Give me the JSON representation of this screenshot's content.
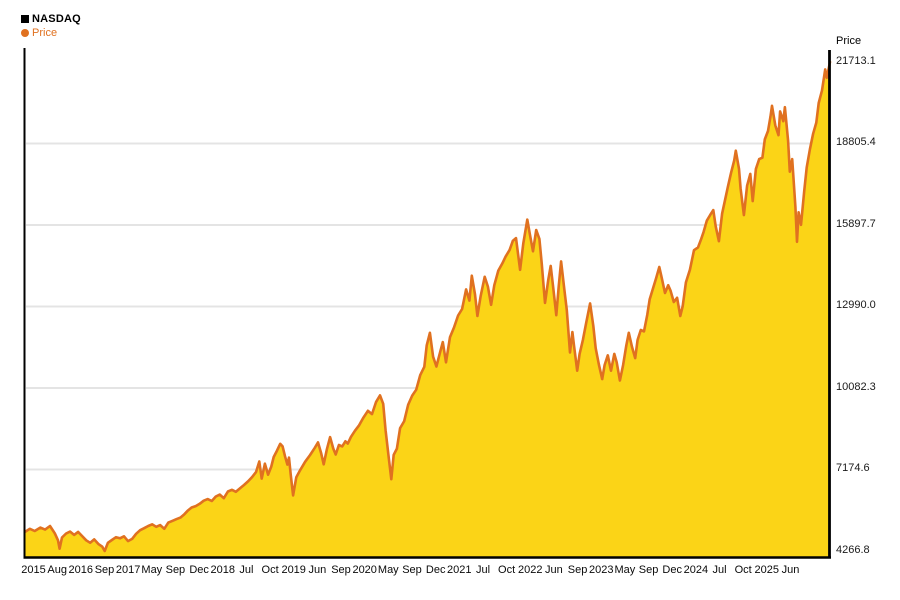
{
  "chart_data": {
    "type": "area",
    "title": "NASDAQ",
    "series_name": "Price",
    "y_axis_title": "Price",
    "legend_position": "top-left",
    "grid": "horizontal-only",
    "ylim": [
      4266.8,
      21713.1
    ],
    "y_ticks": [
      "21713.1",
      "18805.4",
      "15897.7",
      "12990.0",
      "10082.3",
      "7174.6",
      "4266.8"
    ],
    "x_labels": [
      "2015",
      "Aug",
      "2016",
      "Sep",
      "2017",
      "May",
      "Sep",
      "Dec",
      "2018",
      "Jul",
      "Oct",
      "2019",
      "Jun",
      "Sep",
      "2020",
      "May",
      "Sep",
      "Dec",
      "2021",
      "Jul",
      "Oct",
      "2022",
      "Jun",
      "Sep",
      "2023",
      "May",
      "Sep",
      "Dec",
      "2024",
      "Jul",
      "Oct",
      "2025",
      "Jun"
    ],
    "colors": {
      "fill": "#FBD417",
      "line": "#E07120",
      "grid": "#E4E4E4",
      "axis": "#000000",
      "legend_title": "#000000"
    },
    "points": [
      [
        0,
        4950
      ],
      [
        0.006,
        5060
      ],
      [
        0.012,
        4980
      ],
      [
        0.019,
        5100
      ],
      [
        0.025,
        5030
      ],
      [
        0.031,
        5160
      ],
      [
        0.037,
        4900
      ],
      [
        0.041,
        4650
      ],
      [
        0.043,
        4350
      ],
      [
        0.046,
        4750
      ],
      [
        0.051,
        4890
      ],
      [
        0.056,
        4960
      ],
      [
        0.061,
        4840
      ],
      [
        0.066,
        4950
      ],
      [
        0.071,
        4800
      ],
      [
        0.076,
        4650
      ],
      [
        0.081,
        4560
      ],
      [
        0.086,
        4680
      ],
      [
        0.091,
        4520
      ],
      [
        0.096,
        4420
      ],
      [
        0.099,
        4266.8
      ],
      [
        0.103,
        4560
      ],
      [
        0.108,
        4660
      ],
      [
        0.113,
        4760
      ],
      [
        0.118,
        4720
      ],
      [
        0.123,
        4790
      ],
      [
        0.128,
        4620
      ],
      [
        0.133,
        4700
      ],
      [
        0.138,
        4880
      ],
      [
        0.143,
        5010
      ],
      [
        0.148,
        5080
      ],
      [
        0.153,
        5160
      ],
      [
        0.158,
        5220
      ],
      [
        0.163,
        5130
      ],
      [
        0.168,
        5190
      ],
      [
        0.173,
        5060
      ],
      [
        0.178,
        5280
      ],
      [
        0.183,
        5340
      ],
      [
        0.188,
        5400
      ],
      [
        0.193,
        5460
      ],
      [
        0.198,
        5580
      ],
      [
        0.202,
        5700
      ],
      [
        0.207,
        5820
      ],
      [
        0.212,
        5870
      ],
      [
        0.217,
        5950
      ],
      [
        0.222,
        6060
      ],
      [
        0.227,
        6120
      ],
      [
        0.232,
        6050
      ],
      [
        0.237,
        6210
      ],
      [
        0.242,
        6280
      ],
      [
        0.247,
        6150
      ],
      [
        0.252,
        6390
      ],
      [
        0.257,
        6450
      ],
      [
        0.262,
        6380
      ],
      [
        0.267,
        6500
      ],
      [
        0.272,
        6620
      ],
      [
        0.277,
        6750
      ],
      [
        0.282,
        6900
      ],
      [
        0.287,
        7080
      ],
      [
        0.291,
        7460
      ],
      [
        0.294,
        6850
      ],
      [
        0.298,
        7380
      ],
      [
        0.302,
        6990
      ],
      [
        0.306,
        7280
      ],
      [
        0.309,
        7620
      ],
      [
        0.313,
        7850
      ],
      [
        0.317,
        8090
      ],
      [
        0.32,
        8000
      ],
      [
        0.323,
        7650
      ],
      [
        0.326,
        7350
      ],
      [
        0.328,
        7600
      ],
      [
        0.33,
        7000
      ],
      [
        0.333,
        6250
      ],
      [
        0.337,
        6900
      ],
      [
        0.342,
        7160
      ],
      [
        0.348,
        7450
      ],
      [
        0.354,
        7690
      ],
      [
        0.36,
        7950
      ],
      [
        0.364,
        8140
      ],
      [
        0.368,
        7750
      ],
      [
        0.371,
        7360
      ],
      [
        0.375,
        7900
      ],
      [
        0.379,
        8330
      ],
      [
        0.383,
        7920
      ],
      [
        0.386,
        7710
      ],
      [
        0.39,
        8050
      ],
      [
        0.394,
        8000
      ],
      [
        0.398,
        8180
      ],
      [
        0.401,
        8100
      ],
      [
        0.405,
        8340
      ],
      [
        0.41,
        8560
      ],
      [
        0.415,
        8750
      ],
      [
        0.42,
        9010
      ],
      [
        0.426,
        9270
      ],
      [
        0.431,
        9150
      ],
      [
        0.436,
        9580
      ],
      [
        0.441,
        9820
      ],
      [
        0.445,
        9520
      ],
      [
        0.448,
        8570
      ],
      [
        0.452,
        7550
      ],
      [
        0.455,
        6830
      ],
      [
        0.458,
        7700
      ],
      [
        0.462,
        7920
      ],
      [
        0.466,
        8650
      ],
      [
        0.471,
        8900
      ],
      [
        0.476,
        9490
      ],
      [
        0.481,
        9810
      ],
      [
        0.486,
        10020
      ],
      [
        0.491,
        10550
      ],
      [
        0.496,
        10840
      ],
      [
        0.499,
        11600
      ],
      [
        0.503,
        12050
      ],
      [
        0.507,
        11200
      ],
      [
        0.511,
        10850
      ],
      [
        0.516,
        11400
      ],
      [
        0.519,
        11720
      ],
      [
        0.523,
        11000
      ],
      [
        0.528,
        11900
      ],
      [
        0.533,
        12250
      ],
      [
        0.538,
        12670
      ],
      [
        0.543,
        12900
      ],
      [
        0.548,
        13600
      ],
      [
        0.552,
        13200
      ],
      [
        0.555,
        14090
      ],
      [
        0.559,
        13420
      ],
      [
        0.562,
        12650
      ],
      [
        0.566,
        13350
      ],
      [
        0.571,
        14050
      ],
      [
        0.575,
        13700
      ],
      [
        0.579,
        13050
      ],
      [
        0.583,
        13750
      ],
      [
        0.588,
        14270
      ],
      [
        0.593,
        14530
      ],
      [
        0.597,
        14770
      ],
      [
        0.602,
        15010
      ],
      [
        0.606,
        15330
      ],
      [
        0.61,
        15430
      ],
      [
        0.615,
        14300
      ],
      [
        0.619,
        15240
      ],
      [
        0.624,
        16090
      ],
      [
        0.627,
        15600
      ],
      [
        0.631,
        14960
      ],
      [
        0.635,
        15720
      ],
      [
        0.639,
        15400
      ],
      [
        0.642,
        14500
      ],
      [
        0.646,
        13120
      ],
      [
        0.65,
        13950
      ],
      [
        0.653,
        14440
      ],
      [
        0.656,
        13700
      ],
      [
        0.66,
        12680
      ],
      [
        0.663,
        13700
      ],
      [
        0.666,
        14600
      ],
      [
        0.67,
        13580
      ],
      [
        0.673,
        12860
      ],
      [
        0.677,
        11350
      ],
      [
        0.68,
        12080
      ],
      [
        0.682,
        11600
      ],
      [
        0.686,
        10700
      ],
      [
        0.689,
        11300
      ],
      [
        0.693,
        11800
      ],
      [
        0.697,
        12390
      ],
      [
        0.702,
        13100
      ],
      [
        0.706,
        12300
      ],
      [
        0.709,
        11500
      ],
      [
        0.713,
        10900
      ],
      [
        0.717,
        10400
      ],
      [
        0.72,
        10900
      ],
      [
        0.724,
        11250
      ],
      [
        0.728,
        10700
      ],
      [
        0.732,
        11300
      ],
      [
        0.735,
        11000
      ],
      [
        0.739,
        10350
      ],
      [
        0.743,
        10900
      ],
      [
        0.747,
        11600
      ],
      [
        0.75,
        12050
      ],
      [
        0.754,
        11550
      ],
      [
        0.758,
        11150
      ],
      [
        0.761,
        11800
      ],
      [
        0.765,
        12150
      ],
      [
        0.769,
        12100
      ],
      [
        0.773,
        12700
      ],
      [
        0.776,
        13250
      ],
      [
        0.78,
        13620
      ],
      [
        0.784,
        14000
      ],
      [
        0.788,
        14400
      ],
      [
        0.791,
        14000
      ],
      [
        0.795,
        13470
      ],
      [
        0.799,
        13750
      ],
      [
        0.802,
        13550
      ],
      [
        0.806,
        13150
      ],
      [
        0.81,
        13300
      ],
      [
        0.814,
        12650
      ],
      [
        0.817,
        13000
      ],
      [
        0.821,
        13850
      ],
      [
        0.826,
        14300
      ],
      [
        0.831,
        15000
      ],
      [
        0.836,
        15100
      ],
      [
        0.84,
        15400
      ],
      [
        0.843,
        15650
      ],
      [
        0.847,
        16050
      ],
      [
        0.851,
        16250
      ],
      [
        0.855,
        16430
      ],
      [
        0.858,
        15850
      ],
      [
        0.862,
        15320
      ],
      [
        0.866,
        16300
      ],
      [
        0.87,
        16850
      ],
      [
        0.873,
        17250
      ],
      [
        0.877,
        17750
      ],
      [
        0.881,
        18200
      ],
      [
        0.883,
        18550
      ],
      [
        0.887,
        17900
      ],
      [
        0.889,
        17200
      ],
      [
        0.893,
        16250
      ],
      [
        0.897,
        17300
      ],
      [
        0.901,
        17720
      ],
      [
        0.904,
        16750
      ],
      [
        0.908,
        17900
      ],
      [
        0.912,
        18250
      ],
      [
        0.916,
        18300
      ],
      [
        0.919,
        18950
      ],
      [
        0.923,
        19250
      ],
      [
        0.926,
        19750
      ],
      [
        0.928,
        20150
      ],
      [
        0.932,
        19450
      ],
      [
        0.936,
        19100
      ],
      [
        0.938,
        19950
      ],
      [
        0.942,
        19600
      ],
      [
        0.944,
        20100
      ],
      [
        0.948,
        18900
      ],
      [
        0.95,
        17800
      ],
      [
        0.953,
        18250
      ],
      [
        0.957,
        16550
      ],
      [
        0.959,
        15300
      ],
      [
        0.961,
        16350
      ],
      [
        0.964,
        15900
      ],
      [
        0.968,
        17100
      ],
      [
        0.971,
        17950
      ],
      [
        0.975,
        18600
      ],
      [
        0.979,
        19150
      ],
      [
        0.983,
        19550
      ],
      [
        0.986,
        20250
      ],
      [
        0.99,
        20700
      ],
      [
        0.994,
        21450
      ],
      [
        0.996,
        21150
      ],
      [
        1,
        21713.1
      ]
    ]
  }
}
